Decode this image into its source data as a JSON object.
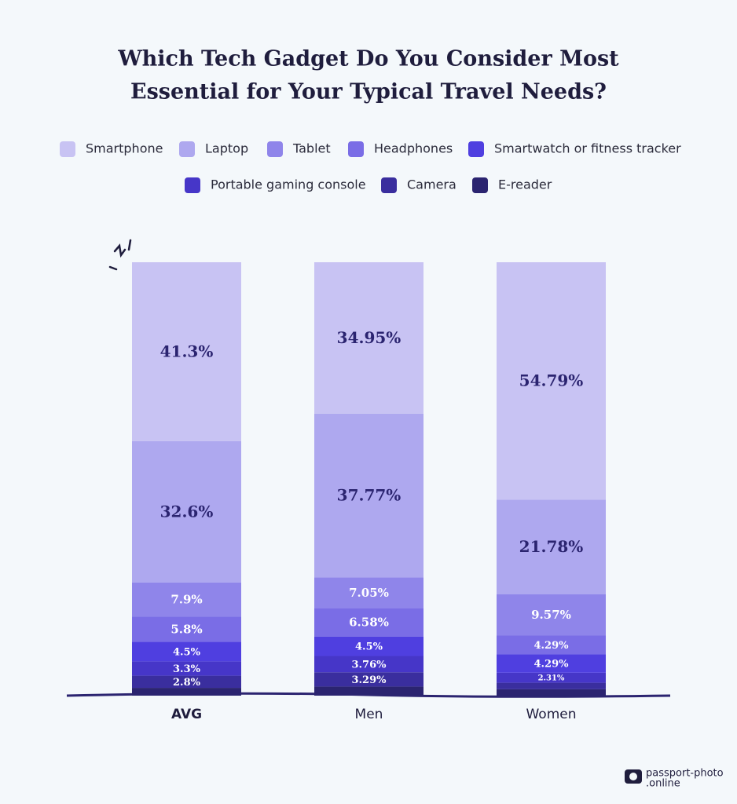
{
  "chart_data": {
    "type": "stacked-bar",
    "title": [
      "Which Tech Gadget Do You Consider Most",
      "Essential for Your Typical Travel Needs?"
    ],
    "categories": [
      "AVG",
      "Men",
      "Women"
    ],
    "ylim": [
      0,
      100
    ],
    "series": [
      {
        "name": "E-reader",
        "color": "#2b2470",
        "values": [
          1.8,
          2.1,
          1.47
        ],
        "value_labels": [
          null,
          null,
          null
        ]
      },
      {
        "name": "Camera",
        "color": "#3a2e9e",
        "values": [
          2.8,
          3.29,
          1.5
        ],
        "value_labels": [
          "2.8%",
          "3.29%",
          null
        ]
      },
      {
        "name": "Portable gaming console",
        "color": "#4636c8",
        "values": [
          3.3,
          3.76,
          2.31
        ],
        "value_labels": [
          "3.3%",
          "3.76%",
          "2.31%"
        ]
      },
      {
        "name": "Smartwatch or fitness tracker",
        "color": "#4f3fe0",
        "values": [
          4.5,
          4.5,
          4.29
        ],
        "value_labels": [
          "4.5%",
          "4.5%",
          "4.29%"
        ]
      },
      {
        "name": "Headphones",
        "color": "#7a6de6",
        "values": [
          5.8,
          6.58,
          4.29
        ],
        "value_labels": [
          "5.8%",
          "6.58%",
          "4.29%"
        ]
      },
      {
        "name": "Tablet",
        "color": "#8f85ea",
        "values": [
          7.9,
          7.05,
          9.57
        ],
        "value_labels": [
          "7.9%",
          "7.05%",
          "9.57%"
        ]
      },
      {
        "name": "Laptop",
        "color": "#aea8ef",
        "values": [
          32.6,
          37.77,
          21.78
        ],
        "value_labels": [
          "32.6%",
          "37.77%",
          "21.78%"
        ]
      },
      {
        "name": "Smartphone",
        "color": "#c8c3f3",
        "values": [
          41.3,
          34.95,
          54.79
        ],
        "value_labels": [
          "41.3%",
          "34.95%",
          "54.79%"
        ]
      }
    ],
    "logo": [
      "passport-photo",
      ".online"
    ]
  }
}
